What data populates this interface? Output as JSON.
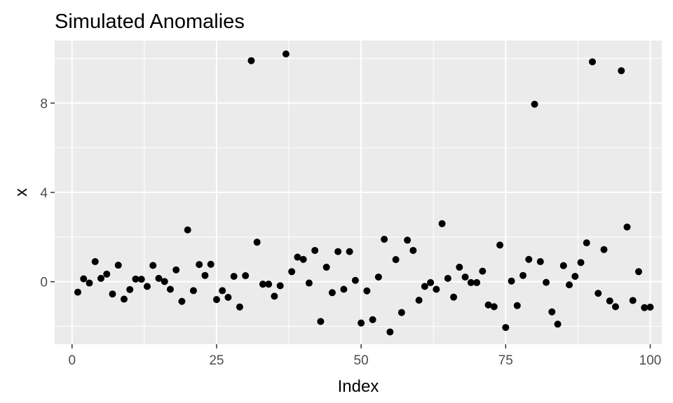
{
  "chart_data": {
    "type": "scatter",
    "title": "Simulated Anomalies",
    "xlabel": "Index",
    "ylabel": "x",
    "xlim": [
      -3,
      102
    ],
    "ylim": [
      -2.8,
      10.8
    ],
    "x_ticks": [
      0,
      25,
      50,
      75,
      100
    ],
    "x_tick_labels": [
      "0",
      "25",
      "50",
      "75",
      "100"
    ],
    "y_ticks": [
      0,
      4,
      8
    ],
    "y_tick_labels": [
      "0",
      "4",
      "8"
    ],
    "x_minor": [
      12.5,
      37.5,
      62.5,
      87.5
    ],
    "y_minor": [
      -2,
      2,
      6,
      10
    ],
    "grid": true,
    "legend": "none",
    "colors": {
      "panel": "#ebebeb",
      "grid": "#ffffff",
      "point": "#000000",
      "tick": "#333333"
    },
    "x": [
      1,
      2,
      3,
      4,
      5,
      6,
      7,
      8,
      9,
      10,
      11,
      12,
      13,
      14,
      15,
      16,
      17,
      18,
      19,
      20,
      21,
      22,
      23,
      24,
      25,
      26,
      27,
      28,
      29,
      30,
      31,
      32,
      33,
      34,
      35,
      36,
      37,
      38,
      39,
      40,
      41,
      42,
      43,
      44,
      45,
      46,
      47,
      48,
      49,
      50,
      51,
      52,
      53,
      54,
      55,
      56,
      57,
      58,
      59,
      60,
      61,
      62,
      63,
      64,
      65,
      66,
      67,
      68,
      69,
      70,
      71,
      72,
      73,
      74,
      75,
      76,
      77,
      78,
      79,
      80,
      81,
      82,
      83,
      84,
      85,
      86,
      87,
      88,
      89,
      90,
      91,
      92,
      93,
      94,
      95,
      96,
      97,
      98,
      99,
      100
    ],
    "y": [
      -0.47,
      0.13,
      -0.06,
      0.9,
      0.15,
      0.34,
      -0.55,
      0.74,
      -0.78,
      -0.35,
      0.12,
      0.11,
      -0.21,
      0.73,
      0.15,
      0.01,
      -0.34,
      0.53,
      -0.88,
      2.32,
      -0.4,
      0.77,
      0.28,
      0.78,
      -0.8,
      -0.4,
      -0.7,
      0.24,
      -1.13,
      0.27,
      9.9,
      1.77,
      -0.11,
      -0.11,
      -0.65,
      -0.18,
      10.2,
      0.45,
      1.1,
      1.0,
      -0.06,
      1.4,
      -1.78,
      0.65,
      -0.49,
      1.35,
      -0.34,
      1.35,
      0.06,
      -1.85,
      -0.41,
      -1.7,
      0.21,
      1.9,
      -2.25,
      0.99,
      -1.38,
      1.86,
      1.4,
      -0.83,
      -0.21,
      -0.04,
      -0.34,
      2.6,
      0.15,
      -0.69,
      0.65,
      0.21,
      -0.04,
      -0.04,
      0.47,
      -1.04,
      -1.12,
      1.64,
      -2.05,
      0.03,
      -1.07,
      0.28,
      1.0,
      7.95,
      0.9,
      -0.03,
      -1.35,
      -1.9,
      0.72,
      -0.14,
      0.24,
      0.86,
      1.74,
      9.85,
      -0.52,
      1.44,
      -0.86,
      -1.12,
      9.45,
      2.45,
      -0.84,
      0.45,
      -1.16,
      -1.14
    ]
  }
}
